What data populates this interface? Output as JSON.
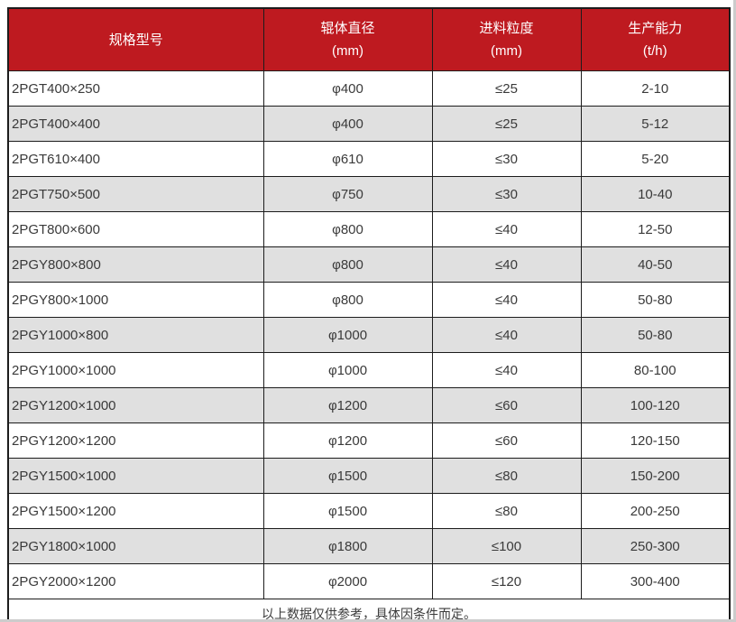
{
  "table": {
    "columns": [
      {
        "label": "规格型号",
        "unit": ""
      },
      {
        "label": "辊体直径",
        "unit": "(mm)"
      },
      {
        "label": "进料粒度",
        "unit": "(mm)"
      },
      {
        "label": "生产能力",
        "unit": "(t/h)"
      }
    ],
    "rows": [
      {
        "model": "2PGT400×250",
        "diameter": "φ400",
        "feed": "≤25",
        "capacity": "2-10"
      },
      {
        "model": "2PGT400×400",
        "diameter": "φ400",
        "feed": "≤25",
        "capacity": "5-12"
      },
      {
        "model": "2PGT610×400",
        "diameter": "φ610",
        "feed": "≤30",
        "capacity": "5-20"
      },
      {
        "model": "2PGT750×500",
        "diameter": "φ750",
        "feed": "≤30",
        "capacity": "10-40"
      },
      {
        "model": "2PGT800×600",
        "diameter": "φ800",
        "feed": "≤40",
        "capacity": "12-50"
      },
      {
        "model": "2PGY800×800",
        "diameter": "φ800",
        "feed": "≤40",
        "capacity": "40-50"
      },
      {
        "model": "2PGY800×1000",
        "diameter": "φ800",
        "feed": "≤40",
        "capacity": "50-80"
      },
      {
        "model": "2PGY1000×800",
        "diameter": "φ1000",
        "feed": "≤40",
        "capacity": "50-80"
      },
      {
        "model": "2PGY1000×1000",
        "diameter": "φ1000",
        "feed": "≤40",
        "capacity": "80-100"
      },
      {
        "model": "2PGY1200×1000",
        "diameter": "φ1200",
        "feed": "≤60",
        "capacity": "100-120"
      },
      {
        "model": "2PGY1200×1200",
        "diameter": "φ1200",
        "feed": "≤60",
        "capacity": "120-150"
      },
      {
        "model": "2PGY1500×1000",
        "diameter": "φ1500",
        "feed": "≤80",
        "capacity": "150-200"
      },
      {
        "model": "2PGY1500×1200",
        "diameter": "φ1500",
        "feed": "≤80",
        "capacity": "200-250"
      },
      {
        "model": "2PGY1800×1000",
        "diameter": "φ1800",
        "feed": "≤100",
        "capacity": "250-300"
      },
      {
        "model": "2PGY2000×1200",
        "diameter": "φ2000",
        "feed": "≤120",
        "capacity": "300-400"
      }
    ],
    "footer_note": "以上数据仅供参考，具体因条件而定。"
  },
  "colors": {
    "header_bg": "#BE1A20",
    "header_text": "#FFFFFF",
    "row_alt_bg": "#E0E0E0",
    "border": "#1C1C1C",
    "body_text": "#3A3A3A"
  }
}
